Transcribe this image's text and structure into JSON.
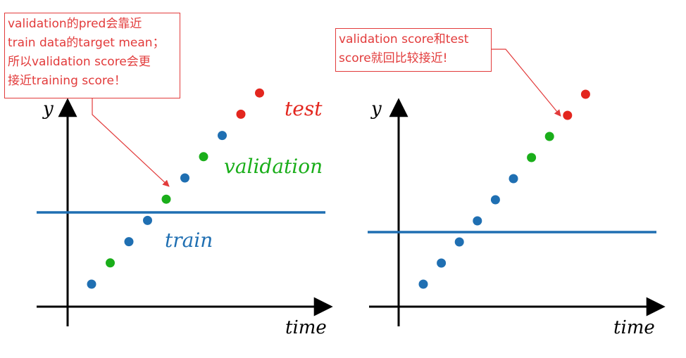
{
  "colors": {
    "train": "#1f6fb2",
    "validation": "#1aae1a",
    "test": "#e3261e",
    "annotation": "#e23b3b",
    "axis": "#000000"
  },
  "left_panel": {
    "axis_y_label": "y",
    "axis_x_label": "time",
    "series_labels": {
      "test": "test",
      "validation": "validation",
      "train": "train"
    },
    "callout": {
      "lines": [
        "validation的pred会靠近",
        "train data的target mean；",
        "所以validation score会更",
        "接近training score！"
      ]
    },
    "points": [
      "train",
      "validation",
      "train",
      "train",
      "validation",
      "train",
      "validation",
      "train",
      "test",
      "test"
    ]
  },
  "right_panel": {
    "axis_y_label": "y",
    "axis_x_label": "time",
    "callout": {
      "lines": [
        "validation score和test",
        "score就回比较接近!"
      ]
    },
    "points": [
      "train",
      "train",
      "train",
      "train",
      "train",
      "train",
      "validation",
      "validation",
      "test",
      "test"
    ]
  }
}
